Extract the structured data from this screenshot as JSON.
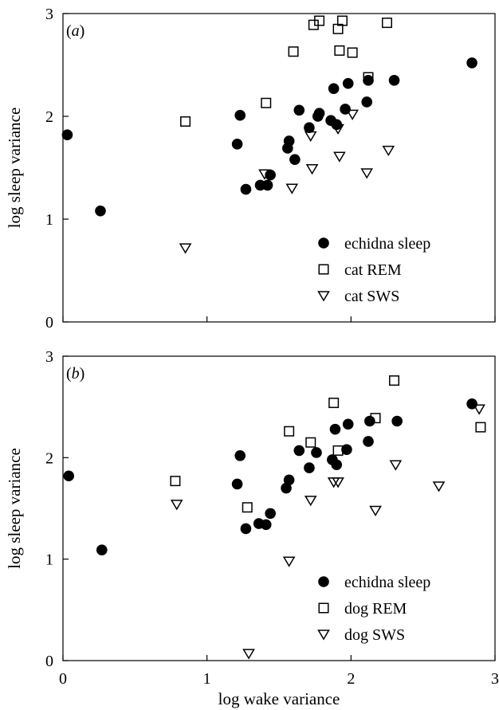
{
  "figure": {
    "xlabel": "log wake variance",
    "shared_x_ticks": [
      "0",
      "1",
      "2",
      "3"
    ]
  },
  "chart_data": [
    {
      "type": "scatter",
      "panel_label": "(a)",
      "xlabel": "log wake variance",
      "ylabel": "log sleep variance",
      "xlim": [
        0,
        3
      ],
      "ylim": [
        0,
        3
      ],
      "x_ticks": [
        "0",
        "1",
        "2",
        "3"
      ],
      "y_ticks": [
        "0",
        "1",
        "2",
        "3"
      ],
      "grid": false,
      "legend_position": "lower-right",
      "series": [
        {
          "name": "echidna sleep",
          "marker": "filled-circle",
          "points": [
            [
              0.03,
              1.82
            ],
            [
              0.26,
              1.08
            ],
            [
              1.21,
              1.73
            ],
            [
              1.23,
              2.01
            ],
            [
              1.27,
              1.29
            ],
            [
              1.37,
              1.33
            ],
            [
              1.42,
              1.33
            ],
            [
              1.44,
              1.43
            ],
            [
              1.56,
              1.69
            ],
            [
              1.57,
              1.76
            ],
            [
              1.61,
              1.58
            ],
            [
              1.64,
              2.06
            ],
            [
              1.71,
              1.89
            ],
            [
              1.77,
              2.0
            ],
            [
              1.78,
              2.03
            ],
            [
              1.86,
              1.96
            ],
            [
              1.88,
              2.27
            ],
            [
              1.9,
              1.92
            ],
            [
              1.96,
              2.07
            ],
            [
              1.98,
              2.32
            ],
            [
              2.11,
              2.14
            ],
            [
              2.12,
              2.35
            ],
            [
              2.3,
              2.35
            ],
            [
              2.84,
              2.52
            ]
          ]
        },
        {
          "name": "cat REM",
          "marker": "open-square",
          "points": [
            [
              0.85,
              1.95
            ],
            [
              1.41,
              2.13
            ],
            [
              1.6,
              2.63
            ],
            [
              1.74,
              2.89
            ],
            [
              1.78,
              2.93
            ],
            [
              1.91,
              2.85
            ],
            [
              1.92,
              2.64
            ],
            [
              1.94,
              2.93
            ],
            [
              2.01,
              2.62
            ],
            [
              2.12,
              2.38
            ],
            [
              2.25,
              2.91
            ]
          ]
        },
        {
          "name": "cat SWS",
          "marker": "open-triangle-down",
          "points": [
            [
              0.85,
              0.72
            ],
            [
              1.4,
              1.44
            ],
            [
              1.59,
              1.3
            ],
            [
              1.72,
              1.81
            ],
            [
              1.73,
              1.49
            ],
            [
              1.91,
              1.88
            ],
            [
              1.92,
              1.61
            ],
            [
              2.01,
              2.02
            ],
            [
              2.11,
              1.45
            ],
            [
              2.26,
              1.67
            ]
          ]
        }
      ]
    },
    {
      "type": "scatter",
      "panel_label": "(b)",
      "xlabel": "log wake variance",
      "ylabel": "log sleep variance",
      "xlim": [
        0,
        3
      ],
      "ylim": [
        0,
        3
      ],
      "x_ticks": [
        "0",
        "1",
        "2",
        "3"
      ],
      "y_ticks": [
        "0",
        "1",
        "2",
        "3"
      ],
      "grid": false,
      "legend_position": "lower-right",
      "series": [
        {
          "name": "echidna sleep",
          "marker": "filled-circle",
          "points": [
            [
              0.04,
              1.82
            ],
            [
              0.27,
              1.09
            ],
            [
              1.21,
              1.74
            ],
            [
              1.23,
              2.02
            ],
            [
              1.27,
              1.3
            ],
            [
              1.36,
              1.35
            ],
            [
              1.41,
              1.34
            ],
            [
              1.44,
              1.45
            ],
            [
              1.55,
              1.7
            ],
            [
              1.57,
              1.78
            ],
            [
              1.64,
              2.07
            ],
            [
              1.71,
              1.9
            ],
            [
              1.76,
              2.05
            ],
            [
              1.87,
              1.98
            ],
            [
              1.89,
              2.28
            ],
            [
              1.9,
              1.93
            ],
            [
              1.97,
              2.08
            ],
            [
              1.98,
              2.33
            ],
            [
              2.12,
              2.16
            ],
            [
              2.13,
              2.36
            ],
            [
              2.32,
              2.36
            ],
            [
              2.84,
              2.53
            ]
          ]
        },
        {
          "name": "dog REM",
          "marker": "open-square",
          "points": [
            [
              0.78,
              1.77
            ],
            [
              1.28,
              1.51
            ],
            [
              1.57,
              2.26
            ],
            [
              1.72,
              2.15
            ],
            [
              1.88,
              2.54
            ],
            [
              1.91,
              2.07
            ],
            [
              2.17,
              2.39
            ],
            [
              2.3,
              2.76
            ],
            [
              2.9,
              2.3
            ]
          ]
        },
        {
          "name": "dog SWS",
          "marker": "open-triangle-down",
          "points": [
            [
              0.79,
              1.54
            ],
            [
              1.29,
              0.07
            ],
            [
              1.57,
              0.98
            ],
            [
              1.72,
              1.58
            ],
            [
              1.88,
              1.76
            ],
            [
              1.91,
              1.76
            ],
            [
              2.17,
              1.48
            ],
            [
              2.31,
              1.93
            ],
            [
              2.61,
              1.72
            ],
            [
              2.89,
              2.48
            ]
          ]
        }
      ]
    }
  ]
}
